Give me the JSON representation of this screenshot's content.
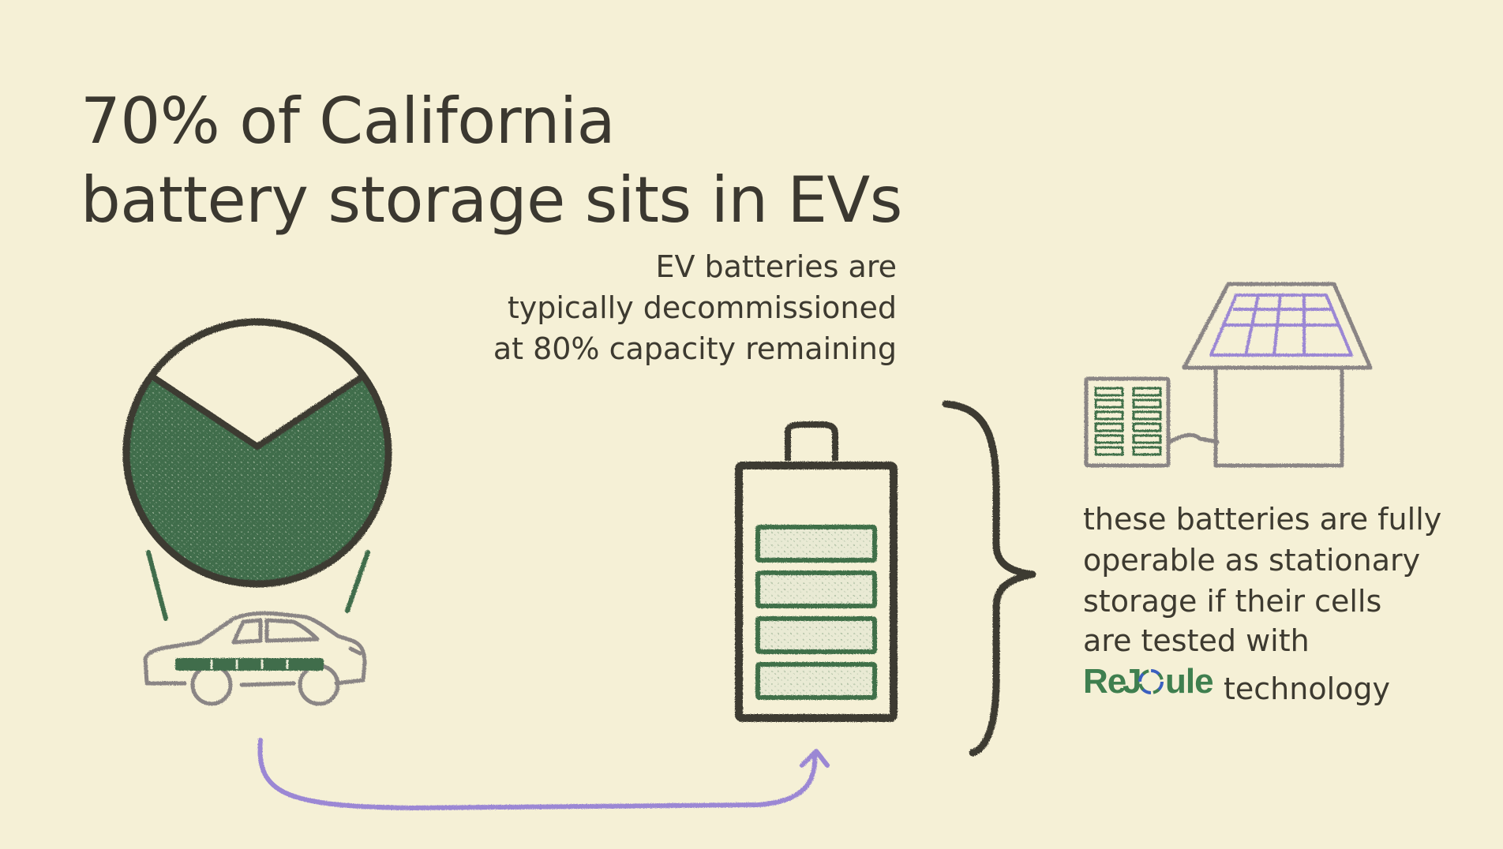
{
  "title": {
    "line1": "70% of California",
    "line2": "battery storage sits in EVs"
  },
  "decommission_note": {
    "line1": "EV batteries are",
    "line2": "typically decommissioned",
    "line3": "at 80% capacity remaining"
  },
  "stationary_note": {
    "line1": "these batteries are fully",
    "line2": "operable as stationary",
    "line3": "storage if their cells",
    "line4": "are tested with",
    "line5_suffix": "technology"
  },
  "brand": {
    "name": "ReJoule",
    "color": "#3f7f4f",
    "accent_color": "#3b5fc0"
  },
  "pie": {
    "ev_share_percent": 70,
    "fill_color": "#3f6d4c"
  },
  "battery": {
    "filled_segments": 4,
    "segment_color": "#3f7048"
  },
  "colors": {
    "background": "#f5f0d6",
    "ink": "#3b3830",
    "arrow": "#9b87d4",
    "car_outline": "#8a8585",
    "solar_panel": "#9b87d4"
  },
  "icons": [
    "pie-chart-icon",
    "car-icon",
    "battery-icon",
    "house-icon",
    "solar-panel-icon",
    "battery-rack-icon",
    "brace-icon",
    "arrow-icon"
  ]
}
